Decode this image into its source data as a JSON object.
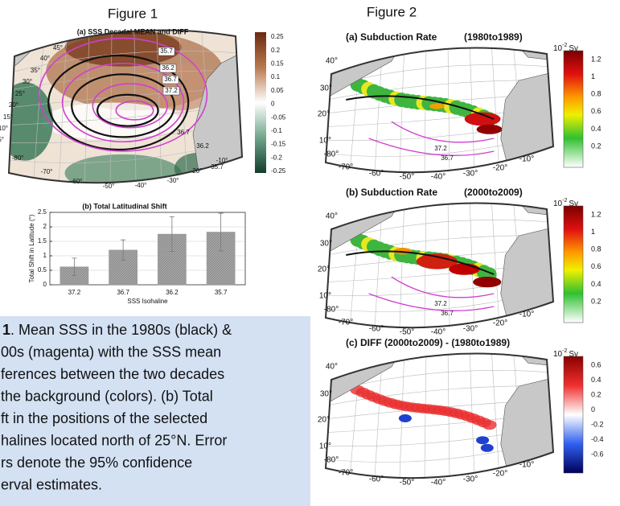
{
  "figure1": {
    "label": "Figure 1",
    "map": {
      "title": "(a) SSS Decadal MEAN and DIFF",
      "lat_labels": [
        "45°",
        "40°",
        "35°",
        "30°",
        "25°",
        "20°",
        "15°",
        "10°",
        "5°"
      ],
      "lon_labels": [
        "-80°",
        "-70°",
        "-60°",
        "-50°",
        "-40°",
        "-30°",
        "-20°",
        "-10°"
      ],
      "contour_labels": [
        "35.7",
        "36.2",
        "36.7",
        "37.2",
        "36.7",
        "36.2",
        "35.7"
      ],
      "colorbar_labels": [
        "0.25",
        "0.2",
        "0.15",
        "0.1",
        "0.05",
        "0",
        "-0.05",
        "-0.1",
        "-0.15",
        "-0.2",
        "-0.25"
      ]
    }
  },
  "chart_data": {
    "type": "bar",
    "title": "(b) Total Latitudinal Shift",
    "x_label": "SSS Isohaline",
    "y_label": "Total Shift in Latitude (°)",
    "categories": [
      "37.2",
      "36.7",
      "36.2",
      "35.7"
    ],
    "values": [
      0.62,
      1.2,
      1.75,
      1.82
    ],
    "errors": [
      0.3,
      0.35,
      0.6,
      0.65
    ],
    "color": "#9a9a9a",
    "ylim": [
      0,
      2.5
    ],
    "yticks": [
      0,
      0.5,
      1,
      1.5,
      2,
      2.5
    ],
    "grid": true
  },
  "caption": {
    "number": "1",
    "lines": [
      ". Mean SSS in the 1980s (black) &",
      "00s (magenta) with the SSS mean",
      "ferences between the two decades",
      "the background (colors). (b) Total",
      "ft in the positions of the selected",
      "halines located north of 25°N. Error",
      "rs denote the 95% confidence",
      "erval estimates."
    ]
  },
  "figure2": {
    "label": "Figure 2",
    "unit": {
      "base": "10",
      "exponent": "-2",
      "unit": "Sv"
    },
    "lat_labels": [
      "40°",
      "30°",
      "20°",
      "10°"
    ],
    "lon_labels": [
      "-80°",
      "-70°",
      "-60°",
      "-50°",
      "-40°",
      "-30°",
      "-20°",
      "-10°"
    ],
    "panels": [
      {
        "title": "(a) Subduction Rate",
        "period": "(1980to1989)",
        "contour_labels": [
          "37.2",
          "36.7"
        ],
        "colorbar_labels": [
          "1.2",
          "1",
          "0.8",
          "0.6",
          "0.4",
          "0.2"
        ]
      },
      {
        "title": "(b) Subduction Rate",
        "period": "(2000to2009)",
        "contour_labels": [
          "37.2",
          "36.7"
        ],
        "colorbar_labels": [
          "1.2",
          "1",
          "0.8",
          "0.6",
          "0.4",
          "0.2"
        ]
      },
      {
        "title": "(c) DIFF (2000to2009) - (1980to1989)",
        "period": "",
        "contour_labels": [],
        "colorbar_labels": [
          "0.6",
          "0.4",
          "0.2",
          "0",
          "-0.2",
          "-0.4",
          "-0.6"
        ]
      }
    ]
  }
}
